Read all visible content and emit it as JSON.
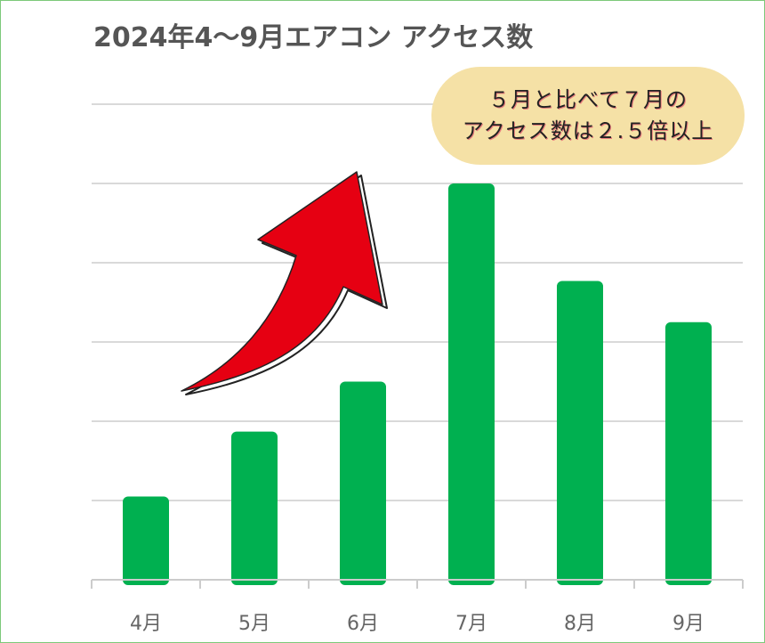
{
  "chart_data": {
    "type": "bar",
    "title": "2024年4〜9月エアコン アクセス数",
    "categories": [
      "4月",
      "5月",
      "6月",
      "7月",
      "8月",
      "9月"
    ],
    "values": [
      1.05,
      1.87,
      2.5,
      5.0,
      3.77,
      3.25
    ],
    "ylim": [
      0,
      6
    ],
    "xlabel": "",
    "ylabel": "",
    "y_tick_labels_visible": false,
    "grid": true,
    "bar_color": "#00b050",
    "annotation": {
      "line1": "５月と比べて７月の",
      "line2": "アクセス数は２.５倍以上",
      "background": "#f5e1a6"
    },
    "arrow_color": "#e60012"
  },
  "frame_border_color": "#7dc97a"
}
